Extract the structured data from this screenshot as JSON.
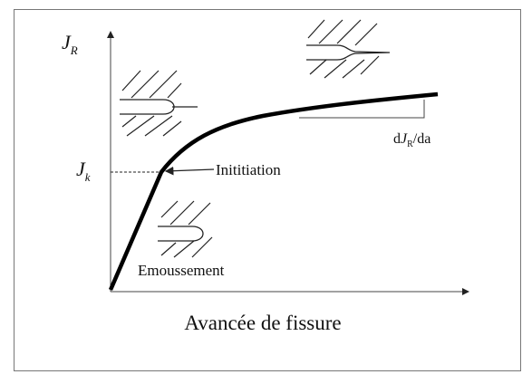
{
  "axis_y": {
    "symbol": "J",
    "subscript": "R"
  },
  "level": {
    "symbol": "J",
    "subscript": "k"
  },
  "annotations": {
    "initiation": "Inititiation",
    "blunting": "Emoussement"
  },
  "slope": {
    "prefix": "d",
    "symbol": "J",
    "subscript": "R",
    "suffix": "/da"
  },
  "axis_x": "Avancée de fissure"
}
